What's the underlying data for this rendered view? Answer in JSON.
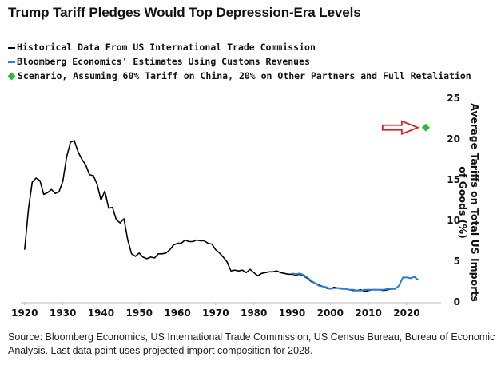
{
  "chart_data": {
    "type": "line",
    "title": "Trump Tariff Pledges Would Top Depression-Era Levels",
    "ylabel": "Average Tariffs on Total US Imports of Goods (%)",
    "xlabel": "",
    "xlim": [
      1919,
      2029
    ],
    "ylim": [
      0,
      25
    ],
    "x_ticks": [
      1920,
      1930,
      1940,
      1950,
      1960,
      1970,
      1980,
      1990,
      2000,
      2010,
      2020
    ],
    "y_ticks": [
      0,
      5,
      10,
      15,
      20,
      25
    ],
    "grid": false,
    "legend_position": "top-left",
    "series": [
      {
        "name": "Historical Data From US International Trade Commission",
        "color": "#000000",
        "x": [
          1920,
          1921,
          1922,
          1923,
          1924,
          1925,
          1926,
          1927,
          1928,
          1929,
          1930,
          1931,
          1932,
          1933,
          1934,
          1935,
          1936,
          1937,
          1938,
          1939,
          1940,
          1941,
          1942,
          1943,
          1944,
          1945,
          1946,
          1947,
          1948,
          1949,
          1950,
          1951,
          1952,
          1953,
          1954,
          1955,
          1956,
          1957,
          1958,
          1959,
          1960,
          1961,
          1962,
          1963,
          1964,
          1965,
          1966,
          1967,
          1968,
          1969,
          1970,
          1971,
          1972,
          1973,
          1974,
          1975,
          1976,
          1977,
          1978,
          1979,
          1980,
          1981,
          1982,
          1983,
          1984,
          1985,
          1986,
          1987,
          1988,
          1989,
          1990,
          1991,
          1992,
          1993,
          1994,
          1995,
          1996,
          1997,
          1998,
          1999,
          2000,
          2001,
          2002,
          2003,
          2004,
          2005,
          2006,
          2007,
          2008,
          2009,
          2010,
          2011,
          2012,
          2013,
          2014,
          2015,
          2016
        ],
        "values": [
          6.4,
          11.4,
          14.7,
          15.2,
          14.9,
          13.2,
          13.4,
          13.8,
          13.3,
          13.5,
          14.8,
          17.8,
          19.6,
          19.8,
          18.4,
          17.5,
          16.8,
          15.6,
          15.5,
          14.4,
          12.5,
          13.6,
          11.5,
          11.6,
          10.1,
          9.7,
          10.2,
          7.6,
          5.9,
          5.6,
          6.0,
          5.5,
          5.3,
          5.5,
          5.4,
          5.9,
          5.9,
          6.0,
          6.4,
          7.0,
          7.2,
          7.2,
          7.6,
          7.4,
          7.4,
          7.6,
          7.5,
          7.5,
          7.2,
          7.1,
          6.4,
          6.0,
          5.5,
          4.9,
          3.8,
          3.9,
          3.8,
          3.9,
          3.6,
          4.0,
          3.6,
          3.2,
          3.5,
          3.6,
          3.7,
          3.7,
          3.8,
          3.6,
          3.5,
          3.4,
          3.4,
          3.3,
          3.4,
          3.2,
          2.9,
          2.5,
          2.3,
          2.1,
          1.9,
          1.7,
          1.6,
          1.8,
          1.7,
          1.7,
          1.6,
          1.5,
          1.4,
          1.4,
          1.5,
          1.3,
          1.4,
          1.5,
          1.5,
          1.5,
          1.4,
          1.5,
          1.6
        ]
      },
      {
        "name": "Bloomberg Economics' Estimates Using Customs Revenues",
        "color": "#2b7bd9",
        "x": [
          1990,
          1991,
          1992,
          1993,
          1994,
          1995,
          1996,
          1997,
          1998,
          1999,
          2000,
          2001,
          2002,
          2003,
          2004,
          2005,
          2006,
          2007,
          2008,
          2009,
          2010,
          2011,
          2012,
          2013,
          2014,
          2015,
          2016,
          2017,
          2018,
          2019,
          2020,
          2021,
          2022,
          2023
        ],
        "values": [
          3.5,
          3.4,
          3.5,
          3.3,
          3.0,
          2.6,
          2.3,
          2.0,
          1.9,
          1.8,
          1.6,
          1.7,
          1.7,
          1.6,
          1.6,
          1.5,
          1.5,
          1.4,
          1.4,
          1.5,
          1.5,
          1.5,
          1.5,
          1.5,
          1.5,
          1.6,
          1.6,
          1.6,
          2.0,
          3.0,
          3.0,
          2.9,
          3.1,
          2.7
        ]
      },
      {
        "name": "Scenario, Assuming 60% Tariff on China, 20% on Other Partners and Full Retaliation",
        "color": "#22c033",
        "marker": "diamond",
        "x": [
          2025
        ],
        "values": [
          21.4
        ]
      }
    ],
    "annotations": [
      {
        "type": "arrow",
        "color": "#e51e1e",
        "points_to_x": 2025,
        "points_to_y": 21.4
      }
    ]
  },
  "legend": [
    {
      "label": "Historical Data From US International Trade Commission",
      "marker": "line",
      "color": "#000000"
    },
    {
      "label": "Bloomberg Economics' Estimates Using Customs Revenues",
      "marker": "line",
      "color": "#2b7bd9"
    },
    {
      "label": "Scenario, Assuming 60% Tariff on China, 20% on Other Partners and Full Retaliation",
      "marker": "diamond",
      "color": "#22c033"
    }
  ],
  "source": "Source: Bloomberg Economics, US International Trade Commission, US Census Bureau, Bureau of Economic Analysis. Last data point uses projected import composition for 2028."
}
